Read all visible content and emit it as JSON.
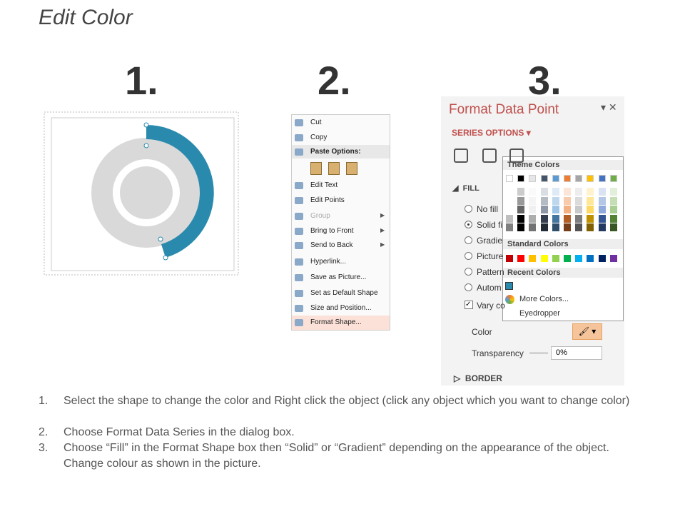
{
  "header": {
    "title": "Edit Color"
  },
  "steps": [
    "1.",
    "2.",
    "3."
  ],
  "context_menu": {
    "items": [
      "Cut",
      "Copy",
      "Paste Options:",
      "Edit Text",
      "Edit Points",
      "Group",
      "Bring to Front",
      "Send to Back",
      "Hyperlink...",
      "Save as Picture...",
      "Set as Default Shape",
      "Size and Position...",
      "Format Shape..."
    ]
  },
  "format_panel": {
    "title": "Format Data Point",
    "section": "SERIES OPTIONS",
    "fill_header": "FILL",
    "fill_options": [
      "No fill",
      "Solid fi",
      "Gradie",
      "Picture",
      "Pattern",
      "Autom"
    ],
    "vary": "Vary co",
    "color_label": "Color",
    "transparency_label": "Transparency",
    "transparency_value": "0%",
    "border_header": "BORDER"
  },
  "color_popup": {
    "theme": "Theme Colors",
    "standard": "Standard Colors",
    "recent": "Recent Colors",
    "more": "More Colors...",
    "eyedropper": "Eyedropper"
  },
  "instructions": [
    {
      "number": "1.",
      "text": "Select the shape to change the color and Right click the object (click any object which you want to change color)"
    },
    {
      "number": "2.",
      "text": "Choose Format Data Series in the dialog box."
    },
    {
      "number": "3.",
      "text": "Choose “Fill” in the Format Shape box then “Solid” or “Gradient” depending on the appearance of the object. Change colour as shown in the picture."
    }
  ]
}
